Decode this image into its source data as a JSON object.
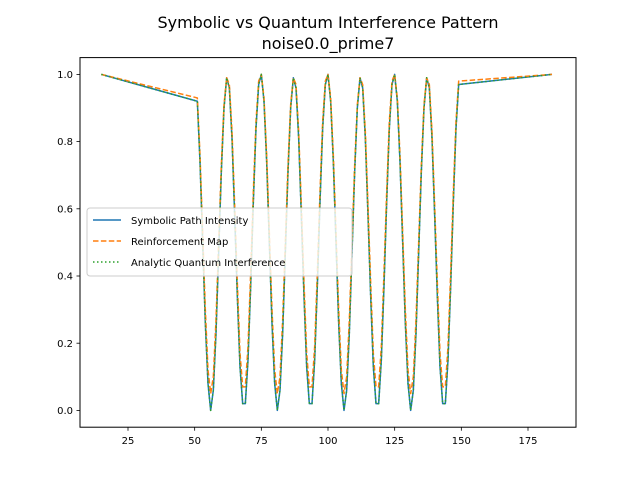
{
  "chart_data": {
    "type": "line",
    "title": "Symbolic vs Quantum Interference Pattern",
    "subtitle": "noise0.0_prime7",
    "xlabel": "",
    "ylabel": "",
    "xlim": [
      7,
      193
    ],
    "ylim": [
      -0.05,
      1.05
    ],
    "x_ticks": [
      25,
      50,
      75,
      100,
      125,
      150,
      175
    ],
    "y_ticks": [
      0.0,
      0.2,
      0.4,
      0.6,
      0.8,
      1.0
    ],
    "x_tick_labels": [
      "25",
      "50",
      "75",
      "100",
      "125",
      "150",
      "175"
    ],
    "y_tick_labels": [
      "0.0",
      "0.2",
      "0.4",
      "0.6",
      "0.8",
      "1.0"
    ],
    "grid": false,
    "legend_position": "center-left",
    "series": [
      {
        "name": "Symbolic Path Intensity",
        "color": "#1f77b4",
        "style": "solid",
        "x": [
          15,
          51,
          52,
          53,
          54,
          55,
          56,
          57,
          58,
          59,
          60,
          61,
          62,
          63,
          64,
          65,
          66,
          67,
          68,
          69,
          70,
          71,
          72,
          73,
          74,
          75,
          76,
          77,
          78,
          79,
          80,
          81,
          82,
          83,
          84,
          85,
          86,
          87,
          88,
          89,
          90,
          91,
          92,
          93,
          94,
          95,
          96,
          97,
          98,
          99,
          100,
          101,
          102,
          103,
          104,
          105,
          106,
          107,
          108,
          109,
          110,
          111,
          112,
          113,
          114,
          115,
          116,
          117,
          118,
          119,
          120,
          121,
          122,
          123,
          124,
          125,
          126,
          127,
          128,
          129,
          130,
          131,
          132,
          133,
          134,
          135,
          136,
          137,
          138,
          139,
          140,
          141,
          142,
          143,
          144,
          145,
          146,
          147,
          148,
          149,
          184
        ],
        "y": [
          1.0,
          0.92,
          0.74,
          0.5,
          0.26,
          0.08,
          0.0,
          0.06,
          0.23,
          0.47,
          0.71,
          0.9,
          0.99,
          0.96,
          0.81,
          0.58,
          0.34,
          0.13,
          0.02,
          0.02,
          0.15,
          0.37,
          0.62,
          0.84,
          0.97,
          1.0,
          0.92,
          0.74,
          0.5,
          0.26,
          0.08,
          0.0,
          0.06,
          0.23,
          0.47,
          0.71,
          0.9,
          0.99,
          0.96,
          0.81,
          0.58,
          0.34,
          0.13,
          0.02,
          0.02,
          0.15,
          0.37,
          0.62,
          0.84,
          0.97,
          1.0,
          0.92,
          0.74,
          0.5,
          0.26,
          0.08,
          0.0,
          0.06,
          0.23,
          0.47,
          0.71,
          0.9,
          0.99,
          0.96,
          0.81,
          0.58,
          0.34,
          0.13,
          0.02,
          0.02,
          0.15,
          0.37,
          0.62,
          0.84,
          0.97,
          1.0,
          0.92,
          0.74,
          0.5,
          0.26,
          0.08,
          0.0,
          0.06,
          0.23,
          0.47,
          0.71,
          0.9,
          0.99,
          0.96,
          0.81,
          0.58,
          0.34,
          0.13,
          0.02,
          0.02,
          0.15,
          0.37,
          0.62,
          0.84,
          0.97,
          1.0
        ]
      },
      {
        "name": "Reinforcement Map",
        "color": "#ff7f0e",
        "style": "dashed",
        "x": [
          15,
          51,
          52,
          53,
          54,
          55,
          56,
          57,
          58,
          59,
          60,
          61,
          62,
          63,
          64,
          65,
          66,
          67,
          68,
          69,
          70,
          71,
          72,
          73,
          74,
          75,
          76,
          77,
          78,
          79,
          80,
          81,
          82,
          83,
          84,
          85,
          86,
          87,
          88,
          89,
          90,
          91,
          92,
          93,
          94,
          95,
          96,
          97,
          98,
          99,
          100,
          101,
          102,
          103,
          104,
          105,
          106,
          107,
          108,
          109,
          110,
          111,
          112,
          113,
          114,
          115,
          116,
          117,
          118,
          119,
          120,
          121,
          122,
          123,
          124,
          125,
          126,
          127,
          128,
          129,
          130,
          131,
          132,
          133,
          134,
          135,
          136,
          137,
          138,
          139,
          140,
          141,
          142,
          143,
          144,
          145,
          146,
          147,
          148,
          149,
          184
        ],
        "y": [
          1.0,
          0.93,
          0.76,
          0.53,
          0.3,
          0.12,
          0.05,
          0.1,
          0.27,
          0.5,
          0.73,
          0.91,
          0.99,
          0.97,
          0.83,
          0.61,
          0.38,
          0.17,
          0.07,
          0.07,
          0.19,
          0.41,
          0.65,
          0.86,
          0.98,
          1.0,
          0.93,
          0.76,
          0.53,
          0.3,
          0.12,
          0.05,
          0.1,
          0.27,
          0.5,
          0.73,
          0.91,
          0.99,
          0.97,
          0.83,
          0.61,
          0.38,
          0.17,
          0.07,
          0.07,
          0.19,
          0.41,
          0.65,
          0.86,
          0.98,
          1.0,
          0.93,
          0.76,
          0.53,
          0.3,
          0.12,
          0.05,
          0.1,
          0.27,
          0.5,
          0.73,
          0.91,
          0.99,
          0.97,
          0.83,
          0.61,
          0.38,
          0.17,
          0.07,
          0.07,
          0.19,
          0.41,
          0.65,
          0.86,
          0.98,
          1.0,
          0.93,
          0.76,
          0.53,
          0.3,
          0.12,
          0.05,
          0.1,
          0.27,
          0.5,
          0.73,
          0.91,
          0.99,
          0.97,
          0.83,
          0.61,
          0.38,
          0.17,
          0.07,
          0.07,
          0.19,
          0.41,
          0.65,
          0.86,
          0.98,
          1.0
        ]
      },
      {
        "name": "Analytic Quantum Interference",
        "color": "#2ca02c",
        "style": "dotted",
        "x": [
          15,
          51,
          52,
          53,
          54,
          55,
          56,
          57,
          58,
          59,
          60,
          61,
          62,
          63,
          64,
          65,
          66,
          67,
          68,
          69,
          70,
          71,
          72,
          73,
          74,
          75,
          76,
          77,
          78,
          79,
          80,
          81,
          82,
          83,
          84,
          85,
          86,
          87,
          88,
          89,
          90,
          91,
          92,
          93,
          94,
          95,
          96,
          97,
          98,
          99,
          100,
          101,
          102,
          103,
          104,
          105,
          106,
          107,
          108,
          109,
          110,
          111,
          112,
          113,
          114,
          115,
          116,
          117,
          118,
          119,
          120,
          121,
          122,
          123,
          124,
          125,
          126,
          127,
          128,
          129,
          130,
          131,
          132,
          133,
          134,
          135,
          136,
          137,
          138,
          139,
          140,
          141,
          142,
          143,
          144,
          145,
          146,
          147,
          148,
          149,
          184
        ],
        "y": [
          1.0,
          0.92,
          0.74,
          0.5,
          0.26,
          0.08,
          0.0,
          0.06,
          0.23,
          0.47,
          0.71,
          0.9,
          0.99,
          0.96,
          0.81,
          0.58,
          0.34,
          0.13,
          0.02,
          0.02,
          0.15,
          0.37,
          0.62,
          0.84,
          0.97,
          1.0,
          0.92,
          0.74,
          0.5,
          0.26,
          0.08,
          0.0,
          0.06,
          0.23,
          0.47,
          0.71,
          0.9,
          0.99,
          0.96,
          0.81,
          0.58,
          0.34,
          0.13,
          0.02,
          0.02,
          0.15,
          0.37,
          0.62,
          0.84,
          0.97,
          1.0,
          0.92,
          0.74,
          0.5,
          0.26,
          0.08,
          0.0,
          0.06,
          0.23,
          0.47,
          0.71,
          0.9,
          0.99,
          0.96,
          0.81,
          0.58,
          0.34,
          0.13,
          0.02,
          0.02,
          0.15,
          0.37,
          0.62,
          0.84,
          0.97,
          1.0,
          0.92,
          0.74,
          0.5,
          0.26,
          0.08,
          0.0,
          0.06,
          0.23,
          0.47,
          0.71,
          0.9,
          0.99,
          0.96,
          0.81,
          0.58,
          0.34,
          0.13,
          0.02,
          0.02,
          0.15,
          0.37,
          0.62,
          0.84,
          0.97,
          1.0
        ]
      }
    ]
  }
}
